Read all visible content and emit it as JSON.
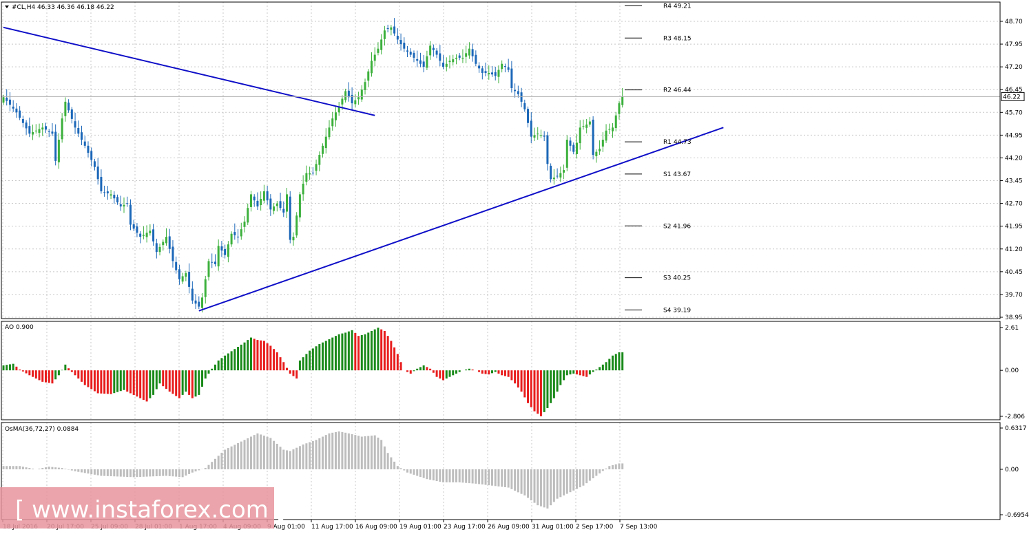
{
  "header": {
    "symbol_line": "#CL,H4  46.33 46.36 46.18 46.22"
  },
  "watermark": {
    "text": "[ www.instaforex.com ]",
    "color": "#e8949c"
  },
  "colors": {
    "bull": "#3cb03c",
    "bear": "#1b67b8",
    "trendline": "#0f0fc8",
    "ao_up": "#1a8a1a",
    "ao_down": "#e81c1c",
    "osma": "#bdbdbd",
    "grid": "#c8c8c8"
  },
  "chart_data": [
    {
      "type": "candlestick",
      "panel": "price",
      "label": "#CL,H4",
      "ylim": [
        38.95,
        48.7
      ],
      "y_ticks": [
        "48.70",
        "47.95",
        "47.20",
        "46.45",
        "45.70",
        "44.95",
        "44.20",
        "43.45",
        "42.70",
        "41.95",
        "41.20",
        "40.45",
        "39.70",
        "38.95"
      ],
      "current_price": "46.22",
      "x_ticks": [
        "18 Jul 2016",
        "20 Jul 17:00",
        "25 Jul 09:00",
        "28 Jul 01:00",
        "1 Aug 17:00",
        "4 Aug 09:00",
        "9 Aug 01:00",
        "11 Aug 17:00",
        "16 Aug 09:00",
        "19 Aug 01:00",
        "23 Aug 17:00",
        "26 Aug 09:00",
        "31 Aug 01:00",
        "2 Sep 17:00",
        "7 Sep 13:00"
      ],
      "close_path": [
        [
          0,
          46.2
        ],
        [
          4,
          45.7
        ],
        [
          8,
          45.0
        ],
        [
          12,
          45.2
        ],
        [
          15,
          45.0
        ],
        [
          16,
          44.1
        ],
        [
          18,
          45.5
        ],
        [
          19,
          46.05
        ],
        [
          22,
          45.2
        ],
        [
          25,
          44.6
        ],
        [
          28,
          43.9
        ],
        [
          30,
          43.1
        ],
        [
          33,
          43.0
        ],
        [
          36,
          42.6
        ],
        [
          38,
          42.7
        ],
        [
          39,
          42.0
        ],
        [
          42,
          41.6
        ],
        [
          45,
          41.8
        ],
        [
          47,
          41.1
        ],
        [
          50,
          41.6
        ],
        [
          52,
          40.8
        ],
        [
          54,
          40.2
        ],
        [
          56,
          40.4
        ],
        [
          58,
          39.5
        ],
        [
          60,
          39.3
        ],
        [
          61,
          39.6
        ],
        [
          63,
          40.8
        ],
        [
          65,
          40.7
        ],
        [
          66,
          41.3
        ],
        [
          68,
          41.0
        ],
        [
          70,
          41.7
        ],
        [
          72,
          41.6
        ],
        [
          74,
          42.1
        ],
        [
          76,
          43.0
        ],
        [
          78,
          42.6
        ],
        [
          80,
          43.1
        ],
        [
          82,
          42.5
        ],
        [
          84,
          42.7
        ],
        [
          86,
          42.4
        ],
        [
          87,
          43.0
        ],
        [
          88,
          41.5
        ],
        [
          89,
          41.6
        ],
        [
          91,
          43.0
        ],
        [
          93,
          43.7
        ],
        [
          95,
          43.7
        ],
        [
          97,
          44.3
        ],
        [
          99,
          44.9
        ],
        [
          101,
          45.5
        ],
        [
          103,
          45.9
        ],
        [
          105,
          46.4
        ],
        [
          107,
          46.0
        ],
        [
          109,
          46.2
        ],
        [
          111,
          46.7
        ],
        [
          113,
          47.4
        ],
        [
          115,
          47.8
        ],
        [
          117,
          48.4
        ],
        [
          119,
          48.5
        ],
        [
          121,
          48.1
        ],
        [
          123,
          47.8
        ],
        [
          125,
          47.6
        ],
        [
          127,
          47.4
        ],
        [
          129,
          47.2
        ],
        [
          131,
          47.9
        ],
        [
          133,
          47.6
        ],
        [
          135,
          47.2
        ],
        [
          137,
          47.4
        ],
        [
          139,
          47.5
        ],
        [
          141,
          47.5
        ],
        [
          143,
          47.8
        ],
        [
          145,
          47.3
        ],
        [
          147,
          47.0
        ],
        [
          149,
          47.0
        ],
        [
          151,
          46.9
        ],
        [
          153,
          47.3
        ],
        [
          155,
          47.1
        ],
        [
          156,
          46.5
        ],
        [
          158,
          46.3
        ],
        [
          160,
          45.8
        ],
        [
          162,
          44.9
        ],
        [
          164,
          45.0
        ],
        [
          166,
          44.9
        ],
        [
          167,
          44.0
        ],
        [
          168,
          43.5
        ],
        [
          170,
          43.6
        ],
        [
          172,
          43.8
        ],
        [
          173,
          44.8
        ],
        [
          175,
          44.4
        ],
        [
          176,
          44.7
        ],
        [
          177,
          45.2
        ],
        [
          179,
          45.3
        ],
        [
          180,
          45.4
        ],
        [
          181,
          44.3
        ],
        [
          183,
          44.5
        ],
        [
          185,
          45.1
        ],
        [
          187,
          45.2
        ],
        [
          189,
          46.0
        ],
        [
          190,
          46.22
        ]
      ],
      "trendlines": [
        {
          "from": [
            0,
            48.5
          ],
          "to": [
            114,
            45.6
          ]
        },
        {
          "from": [
            60,
            39.16
          ],
          "to": [
            221,
            45.2
          ]
        }
      ],
      "pivot_levels": [
        {
          "label": "R4 49.21",
          "value": 49.21
        },
        {
          "label": "R3 48.15",
          "value": 48.15
        },
        {
          "label": "R2 46.44",
          "value": 46.44
        },
        {
          "label": "R1 44.73",
          "value": 44.73
        },
        {
          "label": "S1 43.67",
          "value": 43.67
        },
        {
          "label": "S2 41.96",
          "value": 41.96
        },
        {
          "label": "S3 40.25",
          "value": 40.25
        },
        {
          "label": "S4 39.19",
          "value": 39.19
        }
      ]
    },
    {
      "type": "bar",
      "panel": "ao",
      "label": "AO 0.900",
      "ylim": [
        -2.806,
        2.61
      ],
      "y_ticks": [
        "2.61",
        "0.00",
        "-2.806"
      ],
      "path": [
        [
          0,
          0.3
        ],
        [
          3,
          0.4
        ],
        [
          5,
          0.05
        ],
        [
          8,
          -0.3
        ],
        [
          12,
          -0.7
        ],
        [
          15,
          -0.8
        ],
        [
          17,
          -0.3
        ],
        [
          19,
          0.35
        ],
        [
          21,
          -0.1
        ],
        [
          25,
          -0.9
        ],
        [
          29,
          -1.4
        ],
        [
          33,
          -1.45
        ],
        [
          37,
          -1.2
        ],
        [
          41,
          -1.6
        ],
        [
          44,
          -1.9
        ],
        [
          46,
          -1.5
        ],
        [
          48,
          -0.8
        ],
        [
          51,
          -1.3
        ],
        [
          54,
          -1.7
        ],
        [
          56,
          -1.3
        ],
        [
          58,
          -1.7
        ],
        [
          60,
          -1.5
        ],
        [
          62,
          -0.5
        ],
        [
          64,
          0.1
        ],
        [
          66,
          0.6
        ],
        [
          68,
          0.9
        ],
        [
          71,
          1.3
        ],
        [
          74,
          1.7
        ],
        [
          76,
          2.0
        ],
        [
          78,
          1.85
        ],
        [
          80,
          1.8
        ],
        [
          82,
          1.5
        ],
        [
          84,
          1.1
        ],
        [
          86,
          0.5
        ],
        [
          88,
          -0.2
        ],
        [
          90,
          -0.5
        ],
        [
          91,
          0.6
        ],
        [
          94,
          1.2
        ],
        [
          97,
          1.6
        ],
        [
          100,
          1.9
        ],
        [
          103,
          2.2
        ],
        [
          105,
          2.3
        ],
        [
          107,
          2.45
        ],
        [
          109,
          2.1
        ],
        [
          111,
          2.2
        ],
        [
          113,
          2.4
        ],
        [
          115,
          2.6
        ],
        [
          117,
          2.4
        ],
        [
          119,
          1.8
        ],
        [
          121,
          1.0
        ],
        [
          123,
          0.0
        ],
        [
          125,
          -0.2
        ],
        [
          127,
          0.1
        ],
        [
          129,
          0.3
        ],
        [
          131,
          0.1
        ],
        [
          133,
          -0.4
        ],
        [
          135,
          -0.6
        ],
        [
          137,
          -0.4
        ],
        [
          139,
          -0.2
        ],
        [
          141,
          0.0
        ],
        [
          143,
          0.1
        ],
        [
          145,
          0.0
        ],
        [
          147,
          -0.2
        ],
        [
          149,
          -0.25
        ],
        [
          151,
          -0.1
        ],
        [
          153,
          -0.3
        ],
        [
          155,
          -0.4
        ],
        [
          157,
          -0.8
        ],
        [
          159,
          -1.3
        ],
        [
          161,
          -2.0
        ],
        [
          163,
          -2.5
        ],
        [
          165,
          -2.8
        ],
        [
          167,
          -2.3
        ],
        [
          169,
          -1.7
        ],
        [
          171,
          -0.9
        ],
        [
          173,
          -0.3
        ],
        [
          175,
          -0.2
        ],
        [
          177,
          -0.3
        ],
        [
          179,
          -0.4
        ],
        [
          181,
          -0.1
        ],
        [
          183,
          0.2
        ],
        [
          185,
          0.5
        ],
        [
          187,
          0.9
        ],
        [
          189,
          1.1
        ]
      ]
    },
    {
      "type": "histogram",
      "panel": "osma",
      "label": "OsMA(36,72,27) 0.0884",
      "ylim": [
        -0.6954,
        0.6317
      ],
      "y_ticks": [
        "0.6317",
        "0.00",
        "-0.6954"
      ],
      "path": [
        [
          0,
          0.05
        ],
        [
          5,
          0.05
        ],
        [
          10,
          0.0
        ],
        [
          14,
          0.04
        ],
        [
          18,
          0.02
        ],
        [
          22,
          -0.03
        ],
        [
          30,
          -0.1
        ],
        [
          40,
          -0.12
        ],
        [
          50,
          -0.1
        ],
        [
          55,
          -0.12
        ],
        [
          58,
          -0.05
        ],
        [
          62,
          0.02
        ],
        [
          68,
          0.3
        ],
        [
          74,
          0.45
        ],
        [
          78,
          0.55
        ],
        [
          82,
          0.48
        ],
        [
          86,
          0.3
        ],
        [
          88,
          0.28
        ],
        [
          92,
          0.38
        ],
        [
          96,
          0.45
        ],
        [
          100,
          0.55
        ],
        [
          103,
          0.58
        ],
        [
          106,
          0.55
        ],
        [
          110,
          0.5
        ],
        [
          114,
          0.52
        ],
        [
          116,
          0.45
        ],
        [
          118,
          0.25
        ],
        [
          121,
          0.05
        ],
        [
          124,
          -0.05
        ],
        [
          130,
          -0.15
        ],
        [
          135,
          -0.2
        ],
        [
          140,
          -0.2
        ],
        [
          145,
          -0.22
        ],
        [
          150,
          -0.25
        ],
        [
          155,
          -0.28
        ],
        [
          160,
          -0.4
        ],
        [
          164,
          -0.55
        ],
        [
          167,
          -0.6
        ],
        [
          170,
          -0.45
        ],
        [
          174,
          -0.35
        ],
        [
          178,
          -0.25
        ],
        [
          182,
          -0.1
        ],
        [
          186,
          0.05
        ],
        [
          189,
          0.09
        ]
      ]
    }
  ]
}
